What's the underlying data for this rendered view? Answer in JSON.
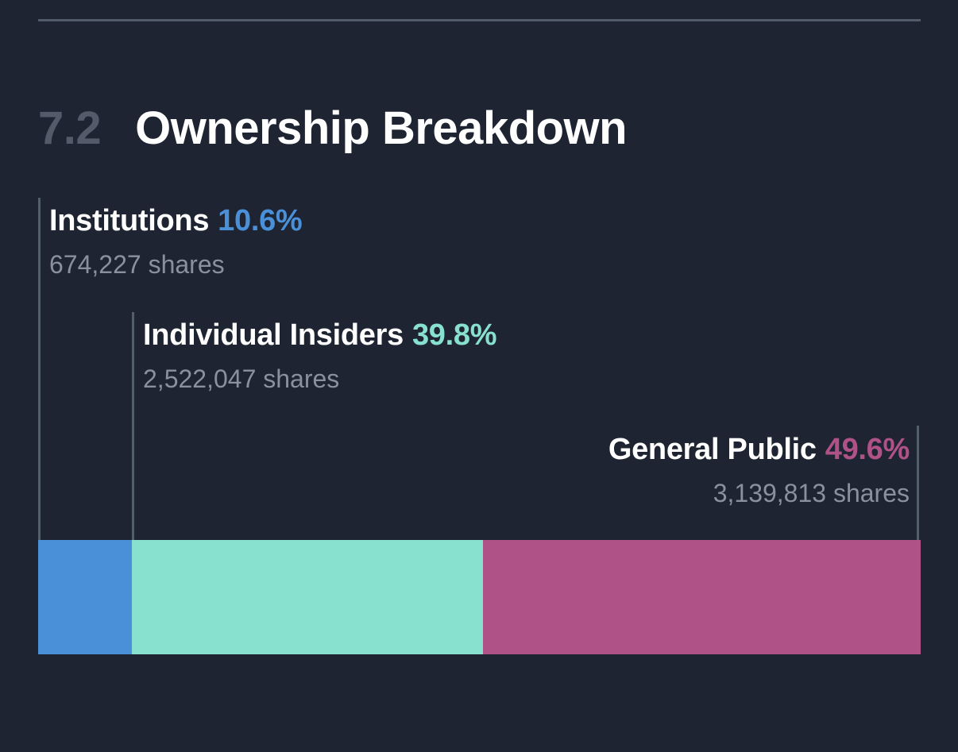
{
  "page": {
    "background_color": "#1e2431",
    "divider_color": "#525b69",
    "leader_line_color": "#545d6b"
  },
  "header": {
    "section_number": "7.2",
    "title": "Ownership Breakdown",
    "section_number_color": "#535a69",
    "title_color": "#ffffff"
  },
  "chart_data": {
    "type": "bar",
    "subtype": "horizontal-stacked-single-bar",
    "title": "Ownership Breakdown",
    "unit": "shares",
    "legend_position": "callout-labels-above-bar",
    "name_color": "#ffffff",
    "shares_text_color": "#8a909c",
    "series": [
      {
        "name": "Institutions",
        "percent": 10.6,
        "percent_label": "10.6%",
        "shares": 674227,
        "shares_label": "674,227 shares",
        "color": "#4a90d9"
      },
      {
        "name": "Individual Insiders",
        "percent": 39.8,
        "percent_label": "39.8%",
        "shares": 2522047,
        "shares_label": "2,522,047 shares",
        "color": "#88e0cf"
      },
      {
        "name": "General Public",
        "percent": 49.6,
        "percent_label": "49.6%",
        "shares": 3139813,
        "shares_label": "3,139,813 shares",
        "color": "#ae5287"
      }
    ]
  }
}
